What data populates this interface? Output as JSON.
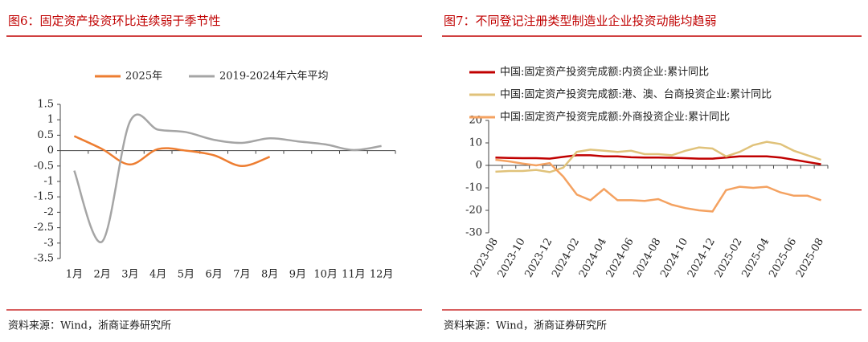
{
  "chart_data": [
    {
      "type": "line",
      "title": "图6：固定资产投资环比连续弱于季节性",
      "source": "资料来源：Wind，浙商证券研究所",
      "categories": [
        "1月",
        "2月",
        "3月",
        "4月",
        "5月",
        "6月",
        "7月",
        "8月",
        "9月",
        "10月",
        "11月",
        "12月"
      ],
      "series": [
        {
          "name": "2025年",
          "color": "#ed7d31",
          "values": [
            0.47,
            0.05,
            -0.45,
            0.05,
            0.0,
            -0.15,
            -0.5,
            -0.2,
            null,
            null,
            null,
            null
          ]
        },
        {
          "name": "2019-2024年六年平均",
          "color": "#a5a5a5",
          "values": [
            -0.65,
            -2.95,
            0.95,
            0.68,
            0.6,
            0.35,
            0.25,
            0.4,
            0.3,
            0.2,
            0.02,
            0.15
          ]
        }
      ],
      "ylim": [
        -3.5,
        1.5
      ],
      "yticks": [
        1.5,
        1,
        0.5,
        0,
        -0.5,
        -1,
        -1.5,
        -2,
        -2.5,
        -3,
        -3.5
      ],
      "smooth": true,
      "legend": "top"
    },
    {
      "type": "line",
      "title": "图7：不同登记注册类型制造业企业投资动能均趋弱",
      "source": "资料来源：Wind，浙商证券研究所",
      "categories": [
        "2023-08",
        null,
        "2023-10",
        null,
        "2023-12",
        null,
        "2024-02",
        null,
        "2024-04",
        null,
        "2024-06",
        null,
        "2024-08",
        null,
        "2024-10",
        null,
        "2024-12",
        null,
        "2025-02",
        null,
        "2025-04",
        null,
        "2025-06",
        null,
        "2025-08"
      ],
      "series": [
        {
          "name": "中国:固定资产投资完成额:内资企业:累计同比",
          "color": "#c00000",
          "values": [
            3.5,
            3.3,
            3.2,
            3.2,
            3.0,
            3.8,
            4.5,
            4.5,
            4.0,
            4.0,
            3.6,
            3.5,
            3.5,
            3.4,
            3.2,
            3.0,
            3.0,
            3.5,
            4.0,
            4.0,
            4.0,
            3.5,
            2.5,
            1.5,
            0.5
          ]
        },
        {
          "name": "中国:固定资产投资完成额:港、澳、台商投资企业:累计同比",
          "color": "#e0c27a",
          "values": [
            -2.8,
            -2.5,
            -2.5,
            -2.0,
            -3.0,
            -1.0,
            6.0,
            7.0,
            6.5,
            6.0,
            6.5,
            5.0,
            5.0,
            4.5,
            6.5,
            8.0,
            7.5,
            4.0,
            6.0,
            9.0,
            10.5,
            9.5,
            6.5,
            4.5,
            2.5
          ]
        },
        {
          "name": "中国:固定资产投资完成额:外商投资企业:累计同比",
          "color": "#f4a261",
          "values": [
            2.5,
            1.8,
            0.8,
            0.0,
            1.0,
            -5.0,
            -13.0,
            -15.5,
            -10.5,
            -15.5,
            -15.5,
            -15.8,
            -15.0,
            -17.5,
            -19.0,
            -20.0,
            -20.5,
            -11.0,
            -9.5,
            -10.0,
            -9.5,
            -12.0,
            -13.5,
            -13.5,
            -15.5
          ]
        }
      ],
      "ylim": [
        -30,
        20
      ],
      "yticks": [
        20,
        10,
        0,
        -10,
        -20,
        -30
      ],
      "smooth": false,
      "legend": "upper left"
    }
  ]
}
